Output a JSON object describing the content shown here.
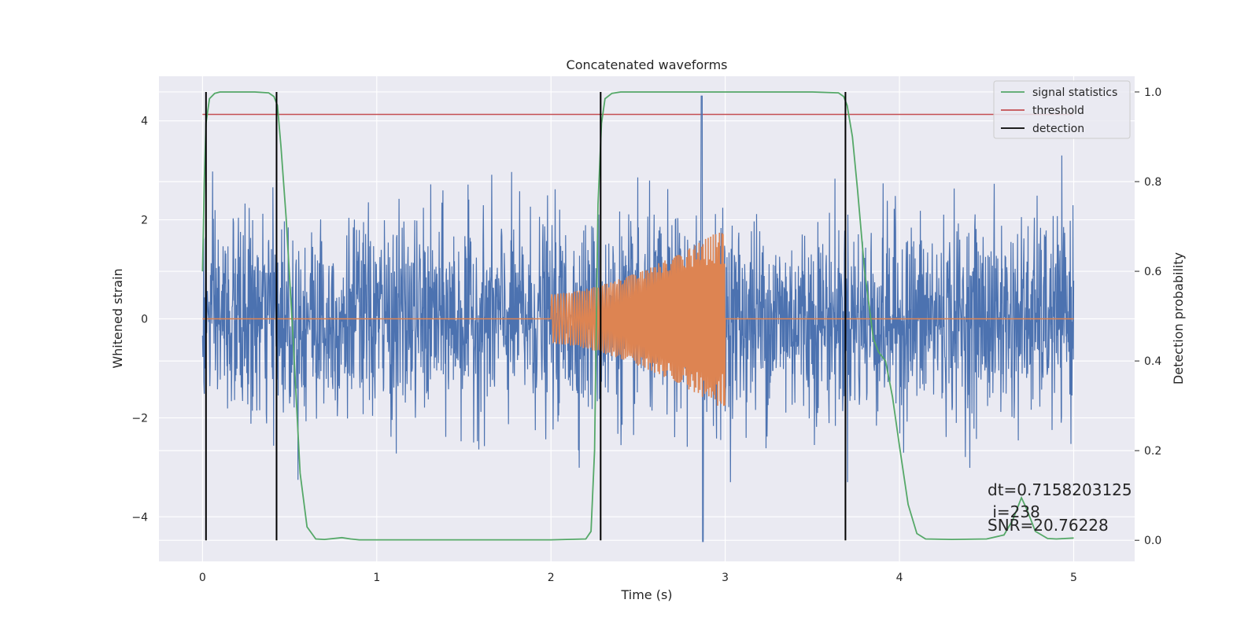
{
  "chart_data": {
    "type": "line",
    "title": "Concatenated waveforms",
    "xlabel": "Time (s)",
    "ylabel": "Whitened strain",
    "y2label": "Detection probability",
    "xlim": [
      -0.25,
      5.35
    ],
    "ylim": [
      -4.9,
      4.9
    ],
    "y2lim": [
      -0.047,
      1.035
    ],
    "x_ticks": [
      0,
      1,
      2,
      3,
      4,
      5
    ],
    "y_ticks": [
      -4,
      -2,
      0,
      2,
      4
    ],
    "y2_ticks": [
      0.0,
      0.2,
      0.4,
      0.6,
      0.8,
      1.0
    ],
    "x_tick_labels": [
      "0",
      "1",
      "2",
      "3",
      "4",
      "5"
    ],
    "y_tick_labels": [
      "−4",
      "−2",
      "0",
      "2",
      "4"
    ],
    "y2_tick_labels": [
      "0.0",
      "0.2",
      "0.4",
      "0.6",
      "0.8",
      "1.0"
    ],
    "grid": true,
    "legend_position": "top-right",
    "legend": [
      {
        "label": "signal statistics",
        "color": "#55a868"
      },
      {
        "label": "threshold",
        "color": "#c44e52"
      },
      {
        "label": "detection",
        "color": "#000000"
      }
    ],
    "colors": {
      "noise": "#4c72b0",
      "signal": "#dd8452",
      "statistic": "#55a868",
      "threshold": "#c44e52",
      "detection": "#000000",
      "plot_background": "#eaeaf2",
      "grid": "#ffffff"
    },
    "noise_series": {
      "x_range": [
        0,
        5
      ],
      "amplitude_typical": 1.0,
      "peak_max": 4.5,
      "peak_min": -4.5
    },
    "signal_series": {
      "x_start": 2.0,
      "x_end": 3.0,
      "amplitude_start": 0.5,
      "amplitude_end": 1.85
    },
    "threshold": {
      "value": 0.95,
      "x_range": [
        0,
        5
      ]
    },
    "detections_x": [
      0.02,
      0.425,
      2.285,
      3.69
    ],
    "statistic_series": {
      "x": [
        0.0,
        0.01,
        0.02,
        0.04,
        0.07,
        0.1,
        0.2,
        0.3,
        0.38,
        0.41,
        0.43,
        0.45,
        0.48,
        0.52,
        0.56,
        0.6,
        0.65,
        0.7,
        0.8,
        0.85,
        0.9,
        1.0,
        1.5,
        2.0,
        2.2,
        2.23,
        2.25,
        2.27,
        2.29,
        2.31,
        2.35,
        2.4,
        2.5,
        3.0,
        3.5,
        3.65,
        3.68,
        3.7,
        3.73,
        3.76,
        3.8,
        3.85,
        3.88,
        3.92,
        3.96,
        4.0,
        4.05,
        4.1,
        4.15,
        4.3,
        4.5,
        4.6,
        4.65,
        4.7,
        4.73,
        4.78,
        4.85,
        4.9,
        5.0
      ],
      "y": [
        0.6,
        0.8,
        0.93,
        0.985,
        0.997,
        1.0,
        1.0,
        1.0,
        0.998,
        0.99,
        0.97,
        0.88,
        0.72,
        0.45,
        0.15,
        0.03,
        0.003,
        0.002,
        0.006,
        0.003,
        0.001,
        0.001,
        0.001,
        0.001,
        0.003,
        0.02,
        0.2,
        0.75,
        0.93,
        0.985,
        0.997,
        1.0,
        1.0,
        1.0,
        1.0,
        0.998,
        0.99,
        0.97,
        0.9,
        0.78,
        0.6,
        0.45,
        0.42,
        0.4,
        0.32,
        0.21,
        0.08,
        0.015,
        0.003,
        0.002,
        0.003,
        0.012,
        0.045,
        0.095,
        0.07,
        0.02,
        0.004,
        0.003,
        0.005
      ]
    },
    "annotation": {
      "line1": "dt=0.7158203125",
      "line2": " i=238",
      "line3": "SNR=20.76228"
    }
  }
}
